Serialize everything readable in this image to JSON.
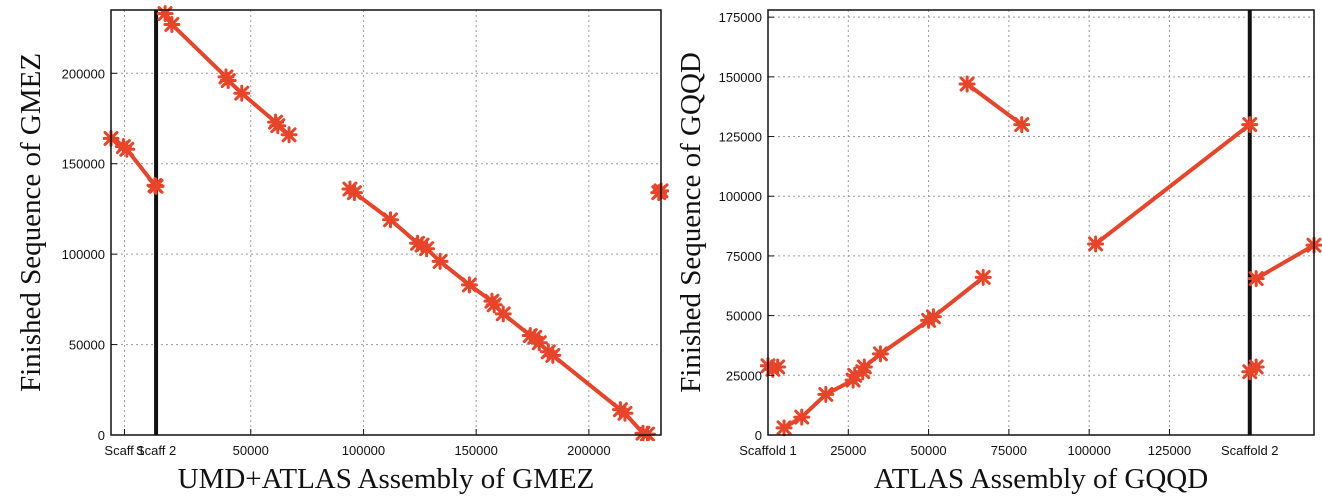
{
  "chart_data": [
    {
      "type": "line",
      "xlabel": "UMD+ATLAS Assembly of GMEZ",
      "ylabel": "Finished Sequence of GMEZ",
      "xlim": [
        -12000,
        232000
      ],
      "ylim": [
        0,
        235000
      ],
      "xticks": [
        {
          "value": -6000,
          "label": "Scaff 1"
        },
        {
          "value": 8000,
          "label": "Scaff 2"
        },
        {
          "value": 50000,
          "label": "50000"
        },
        {
          "value": 100000,
          "label": "100000"
        },
        {
          "value": 150000,
          "label": "150000"
        },
        {
          "value": 200000,
          "label": "200000"
        }
      ],
      "yticks": [
        {
          "value": 0,
          "label": "0"
        },
        {
          "value": 50000,
          "label": "50000"
        },
        {
          "value": 100000,
          "label": "100000"
        },
        {
          "value": 150000,
          "label": "150000"
        },
        {
          "value": 200000,
          "label": "200000"
        }
      ],
      "grid": true,
      "boundaries": [
        8000
      ],
      "series_color": "#e8442a",
      "boundary_color": "#111111",
      "segments": [
        [
          [
            -12000,
            164000
          ],
          [
            -6500,
            159500
          ],
          [
            -5000,
            158000
          ],
          [
            7500,
            138000
          ],
          [
            8000,
            137500
          ]
        ],
        [
          [
            12000,
            233000
          ],
          [
            15000,
            227000
          ],
          [
            39000,
            198000
          ],
          [
            40000,
            196000
          ],
          [
            46000,
            189000
          ],
          [
            61000,
            173000
          ],
          [
            62000,
            171000
          ],
          [
            67000,
            166000
          ]
        ],
        [
          [
            94000,
            136000
          ],
          [
            96000,
            134000
          ],
          [
            112000,
            119000
          ],
          [
            124000,
            106000
          ],
          [
            126000,
            105000
          ],
          [
            128000,
            103000
          ],
          [
            134000,
            96000
          ],
          [
            147000,
            83000
          ],
          [
            157000,
            74000
          ],
          [
            158000,
            72000
          ],
          [
            162000,
            67000
          ],
          [
            174000,
            55000
          ],
          [
            176000,
            54000
          ],
          [
            178000,
            51000
          ],
          [
            182000,
            46000
          ],
          [
            184000,
            44000
          ],
          [
            214000,
            14000
          ],
          [
            216000,
            12000
          ],
          [
            224000,
            1000
          ],
          [
            226000,
            500
          ]
        ],
        [
          [
            231000,
            134000
          ],
          [
            232000,
            135000
          ]
        ]
      ]
    },
    {
      "type": "line",
      "xlabel": "ATLAS Assembly of GQQD",
      "ylabel": "Finished Sequence of GQQD",
      "xlim": [
        0,
        170000
      ],
      "ylim": [
        0,
        178000
      ],
      "xticks": [
        {
          "value": 0,
          "label": "Scaffold 1"
        },
        {
          "value": 25000,
          "label": "25000"
        },
        {
          "value": 50000,
          "label": "50000"
        },
        {
          "value": 75000,
          "label": "75000"
        },
        {
          "value": 100000,
          "label": "100000"
        },
        {
          "value": 125000,
          "label": "125000"
        },
        {
          "value": 150000,
          "label": "Scaffold 2"
        }
      ],
      "yticks": [
        {
          "value": 0,
          "label": "0"
        },
        {
          "value": 25000,
          "label": "25000"
        },
        {
          "value": 50000,
          "label": "50000"
        },
        {
          "value": 75000,
          "label": "75000"
        },
        {
          "value": 100000,
          "label": "100000"
        },
        {
          "value": 125000,
          "label": "125000"
        },
        {
          "value": 150000,
          "label": "150000"
        },
        {
          "value": 175000,
          "label": "175000"
        }
      ],
      "grid": true,
      "boundaries": [
        150000
      ],
      "series_color": "#e8442a",
      "boundary_color": "#111111",
      "segments": [
        [
          [
            0,
            29000
          ],
          [
            1500,
            27500
          ],
          [
            3000,
            28500
          ]
        ],
        [
          [
            5000,
            3000
          ],
          [
            10500,
            7500
          ],
          [
            18000,
            17000
          ],
          [
            26500,
            23000
          ],
          [
            27000,
            25000
          ],
          [
            29500,
            26500
          ],
          [
            30000,
            28500
          ],
          [
            35000,
            34000
          ],
          [
            50000,
            48000
          ],
          [
            51500,
            49500
          ],
          [
            67000,
            66000
          ]
        ],
        [
          [
            62000,
            147000
          ],
          [
            79000,
            130000
          ]
        ],
        [
          [
            102000,
            80000
          ],
          [
            150000,
            130000
          ]
        ],
        [
          [
            150000,
            26500
          ],
          [
            152000,
            28500
          ]
        ],
        [
          [
            152000,
            65500
          ],
          [
            170000,
            79500
          ]
        ]
      ]
    }
  ]
}
